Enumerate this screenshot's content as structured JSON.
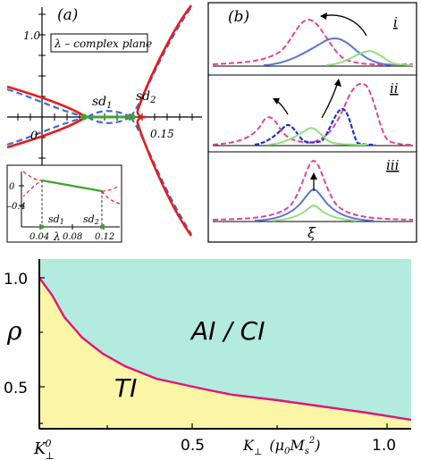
{
  "panel_a": {
    "label": "(a)",
    "plane_label": "λ – complex plane",
    "tick_y_top": "1.0",
    "tick_origin": "0",
    "tick_x": "0.15",
    "sd1": "sd",
    "sd1_sub": "1",
    "sd2": "sd",
    "sd2_sub": "2",
    "inset": {
      "tick_y0": "0",
      "tick_yneg": "–0.4",
      "tick_x1": "0.04",
      "tick_x2": "0.08",
      "tick_x3": "0.12",
      "xlabel": "λ",
      "sd1": "sd",
      "sd1_sub": "1",
      "sd2": "sd",
      "sd2_sub": "2"
    }
  },
  "panel_b": {
    "label": "(b)",
    "row_i": "i",
    "row_ii": "ii",
    "row_iii": "iii",
    "xlabel": "ξ"
  },
  "phase": {
    "ylabel": "ρ",
    "ytick_1": "1.0",
    "ytick_05": "0.5",
    "xtick_k0": "K",
    "xtick_k0_sub": "⊥",
    "xtick_k0_sup": "0",
    "xtick_05": "0.5",
    "xtick_1": "1.0",
    "xlabel_k": "K",
    "xlabel_sub": "⊥",
    "xlabel_unit_open": "(μ",
    "xlabel_unit_0": "0",
    "xlabel_unit_m": "M",
    "xlabel_unit_s": "s",
    "xlabel_unit_2": "2",
    "xlabel_unit_close": ")",
    "region_top": "AI / CI",
    "region_bottom": "TI",
    "colors": {
      "top_region": "#b3ebde",
      "bottom_region": "#fbf6a6",
      "boundary": "#e0147a"
    }
  },
  "colors": {
    "red": "#e81c1c",
    "blue_dash": "#3f67e0",
    "green": "#3fa52b",
    "magenta_dash": "#e0449a",
    "blue_solid": "#5a72d8",
    "light_green": "#8fe07c",
    "blue_dark": "#1f2fd8"
  }
}
